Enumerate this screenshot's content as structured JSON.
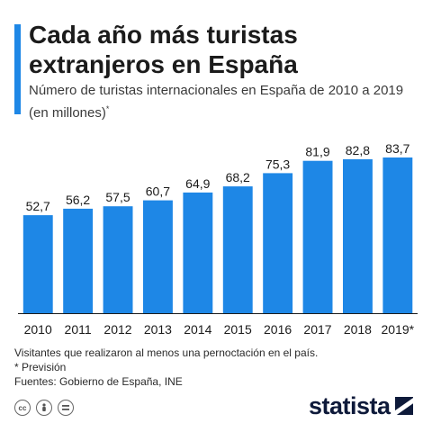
{
  "header": {
    "title": "Cada año más turistas extranjeros en España",
    "subtitle": "Número de turistas internacionales en España de 2010 a 2019 (en millones)",
    "subtitle_mark": "*"
  },
  "colors": {
    "accent": "#1e87e6",
    "bar": "#1e87e6",
    "logo": "#0e1a3a"
  },
  "chart_data": {
    "type": "bar",
    "categories": [
      "2010",
      "2011",
      "2012",
      "2013",
      "2014",
      "2015",
      "2016",
      "2017",
      "2018",
      "2019*"
    ],
    "values": [
      52.7,
      56.2,
      57.5,
      60.7,
      64.9,
      68.2,
      75.3,
      81.9,
      82.8,
      83.7
    ],
    "value_labels": [
      "52,7",
      "56,2",
      "57,5",
      "60,7",
      "64,9",
      "68,2",
      "75,3",
      "81,9",
      "82,8",
      "83,7"
    ],
    "title": "Cada año más turistas extranjeros en España",
    "xlabel": "",
    "ylabel": "",
    "ylim": [
      0,
      90
    ],
    "grid": false,
    "legend": "none"
  },
  "footer": {
    "note_1": "Visitantes que realizaron al menos una pernoctación en el país.",
    "note_2": "* Previsión",
    "sources": "Fuentes: Gobierno de España, INE",
    "brand": "statista",
    "cc_icons": [
      "cc-icon",
      "person-icon",
      "equals-icon"
    ]
  }
}
